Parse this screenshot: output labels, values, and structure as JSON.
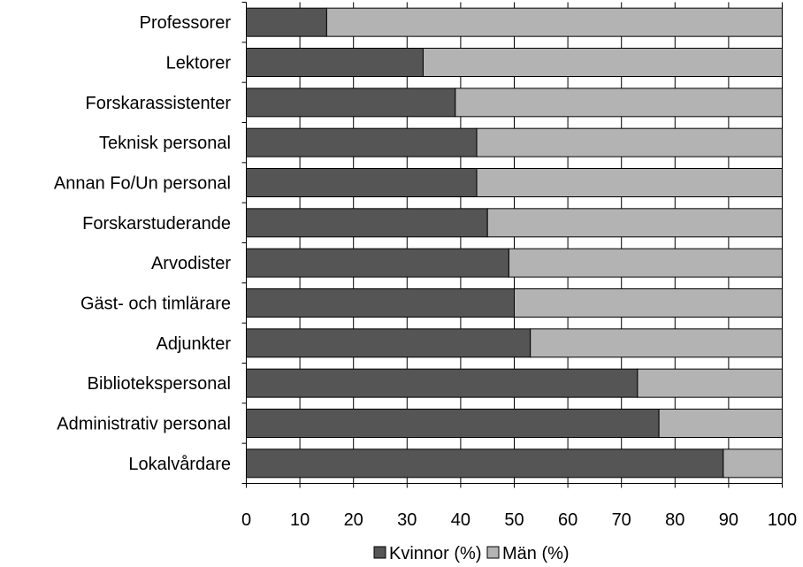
{
  "chart_data": {
    "type": "bar",
    "orientation": "horizontal",
    "stacked": true,
    "categories": [
      "Professorer",
      "Lektorer",
      "Forskarassistenter",
      "Teknisk personal",
      "Annan Fo/Un personal",
      "Forskarstuderande",
      "Arvodister",
      "Gäst- och timlärare",
      "Adjunkter",
      "Bibliotekspersonal",
      "Administrativ personal",
      "Lokalvårdare"
    ],
    "series": [
      {
        "name": "Kvinnor (%)",
        "color": "#555555",
        "values": [
          15,
          33,
          39,
          43,
          43,
          45,
          49,
          50,
          53,
          73,
          77,
          89
        ]
      },
      {
        "name": "Män (%)",
        "color": "#b3b3b3",
        "values": [
          85,
          67,
          61,
          57,
          57,
          55,
          51,
          50,
          47,
          27,
          23,
          11
        ]
      }
    ],
    "xlim": [
      0,
      100
    ],
    "xticks": [
      0,
      10,
      20,
      30,
      40,
      50,
      60,
      70,
      80,
      90,
      100
    ],
    "xtick_labels": [
      "0",
      "10",
      "20",
      "30",
      "40",
      "50",
      "60",
      "70",
      "80",
      "90",
      "100"
    ],
    "grid": true,
    "legend_position": "bottom",
    "title": "",
    "xlabel": "",
    "ylabel": ""
  }
}
